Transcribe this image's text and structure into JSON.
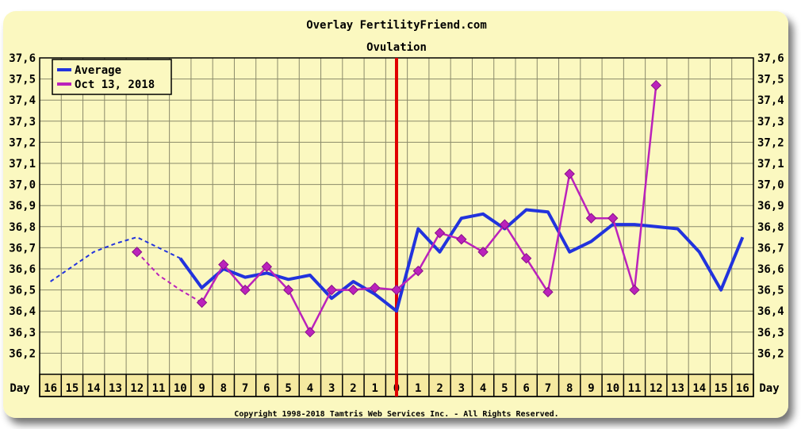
{
  "chart_data": {
    "type": "line",
    "title": "Overlay FertilityFriend.com",
    "subtitle": "Ovulation",
    "footer": "Copyright 1998-2018 Tamtris Web Services Inc. - All Rights Reserved.",
    "xlabel": "Day",
    "ylim": [
      36.1,
      37.6
    ],
    "y_ticks": [
      "37,6",
      "37,5",
      "37,4",
      "37,3",
      "37,2",
      "37,1",
      "37,0",
      "36,9",
      "36,8",
      "36,7",
      "36,6",
      "36,5",
      "36,4",
      "36,3",
      "36,2"
    ],
    "categories": [
      "16",
      "15",
      "14",
      "13",
      "12",
      "11",
      "10",
      "9",
      "8",
      "7",
      "6",
      "5",
      "4",
      "3",
      "2",
      "1",
      "0",
      "1",
      "2",
      "3",
      "4",
      "5",
      "6",
      "7",
      "8",
      "9",
      "10",
      "11",
      "12",
      "13",
      "14",
      "15",
      "16"
    ],
    "ovulation_index": 16,
    "grid": true,
    "legend_position": "top-left",
    "series": [
      {
        "name": "Average",
        "color": "#2233dd",
        "dashed_values": [
          36.54,
          36.61,
          36.68,
          36.72,
          36.75,
          36.7,
          36.65
        ],
        "values": [
          null,
          null,
          null,
          null,
          null,
          null,
          36.65,
          36.51,
          36.6,
          36.56,
          36.58,
          36.55,
          36.57,
          36.46,
          36.54,
          36.48,
          36.4,
          36.79,
          36.68,
          36.84,
          36.86,
          36.79,
          36.88,
          36.87,
          36.68,
          36.73,
          36.81,
          36.81,
          36.8,
          36.79,
          36.68,
          36.5,
          36.75
        ]
      },
      {
        "name": "Oct 13, 2018",
        "color": "#bb22bb",
        "dashed_values": [
          null,
          null,
          null,
          null,
          36.68,
          36.57,
          36.5,
          36.44
        ],
        "values": [
          null,
          null,
          null,
          null,
          36.68,
          null,
          null,
          36.44,
          36.62,
          36.5,
          36.61,
          36.5,
          36.3,
          36.5,
          36.5,
          36.51,
          36.5,
          36.59,
          36.77,
          36.74,
          36.68,
          36.81,
          36.65,
          36.49,
          37.05,
          36.84,
          36.84,
          36.5,
          37.47,
          null,
          null,
          null,
          null
        ],
        "marker_values": [
          null,
          null,
          null,
          null,
          36.68,
          null,
          null,
          36.44,
          36.62,
          36.5,
          36.61,
          36.5,
          36.3,
          36.5,
          36.5,
          36.51,
          36.5,
          36.59,
          36.77,
          36.74,
          36.68,
          36.81,
          36.65,
          36.49,
          37.05,
          36.84,
          36.84,
          36.5,
          37.47,
          null,
          null,
          null,
          null
        ]
      }
    ]
  }
}
